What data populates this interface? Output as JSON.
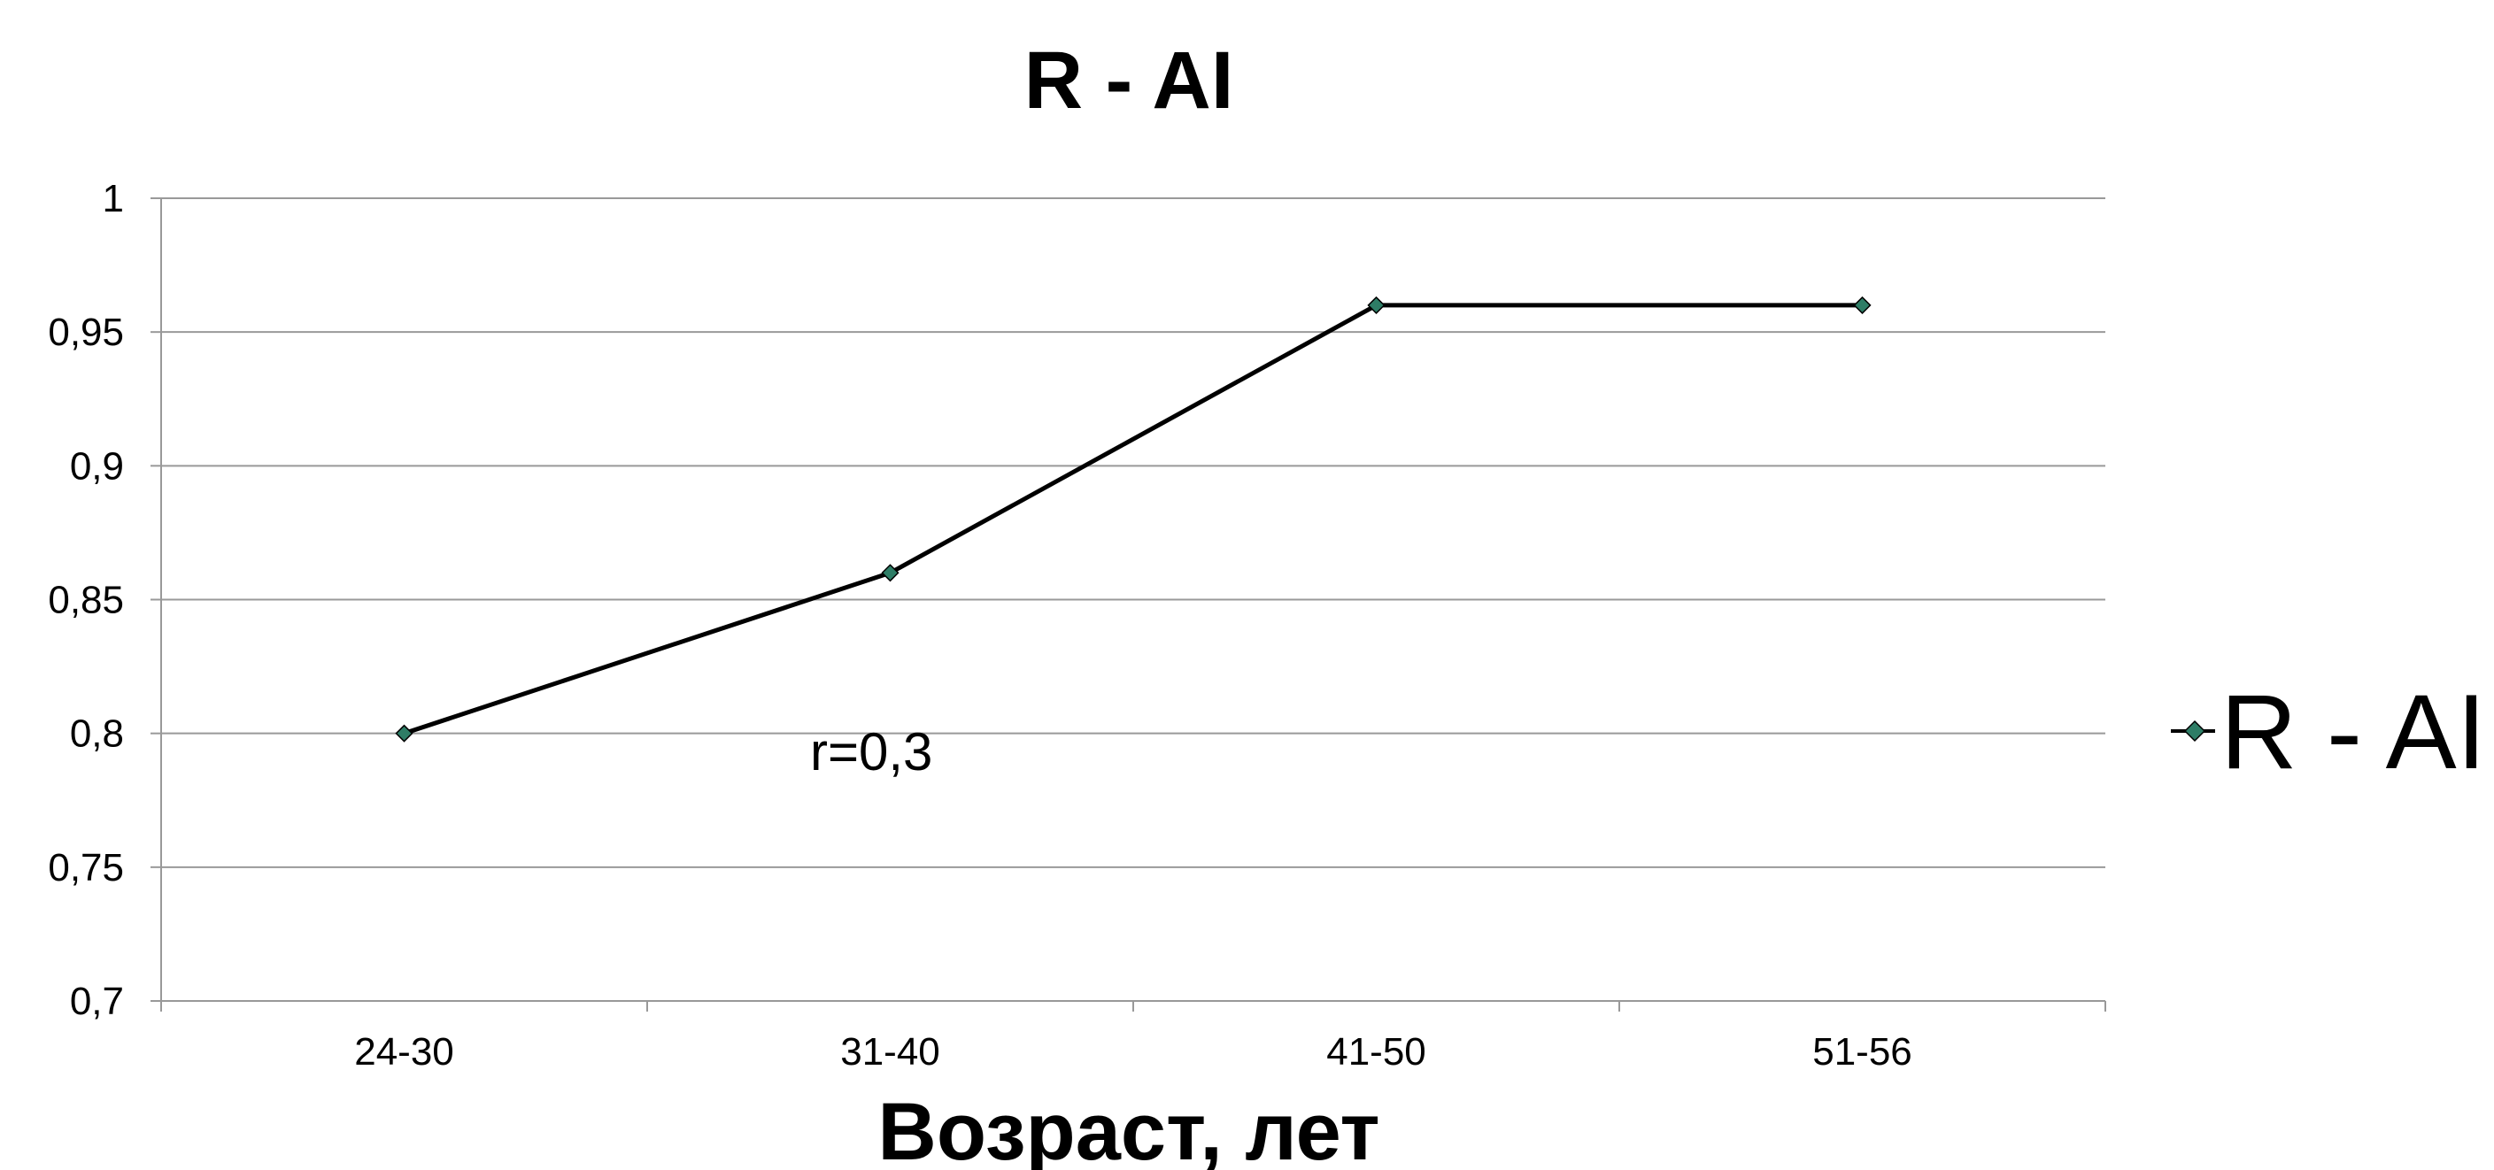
{
  "chart_data": {
    "type": "line",
    "title": "R - AI",
    "xlabel": "Возраст, лет",
    "ylabel": "",
    "categories": [
      "24-30",
      "31-40",
      "41-50",
      "51-56"
    ],
    "series": [
      {
        "name": "R - AI",
        "values": [
          0.8,
          0.86,
          0.96,
          0.96
        ]
      }
    ],
    "ylim": [
      0.7,
      1
    ],
    "yticks": [
      "0,7",
      "0,75",
      "0,8",
      "0,85",
      "0,9",
      "0,95",
      "1"
    ],
    "annotation": "r=0,3",
    "grid": true,
    "legend_position": "right",
    "colors": {
      "line": "#000000",
      "marker": "#2e7d66",
      "grid": "#999999"
    }
  }
}
